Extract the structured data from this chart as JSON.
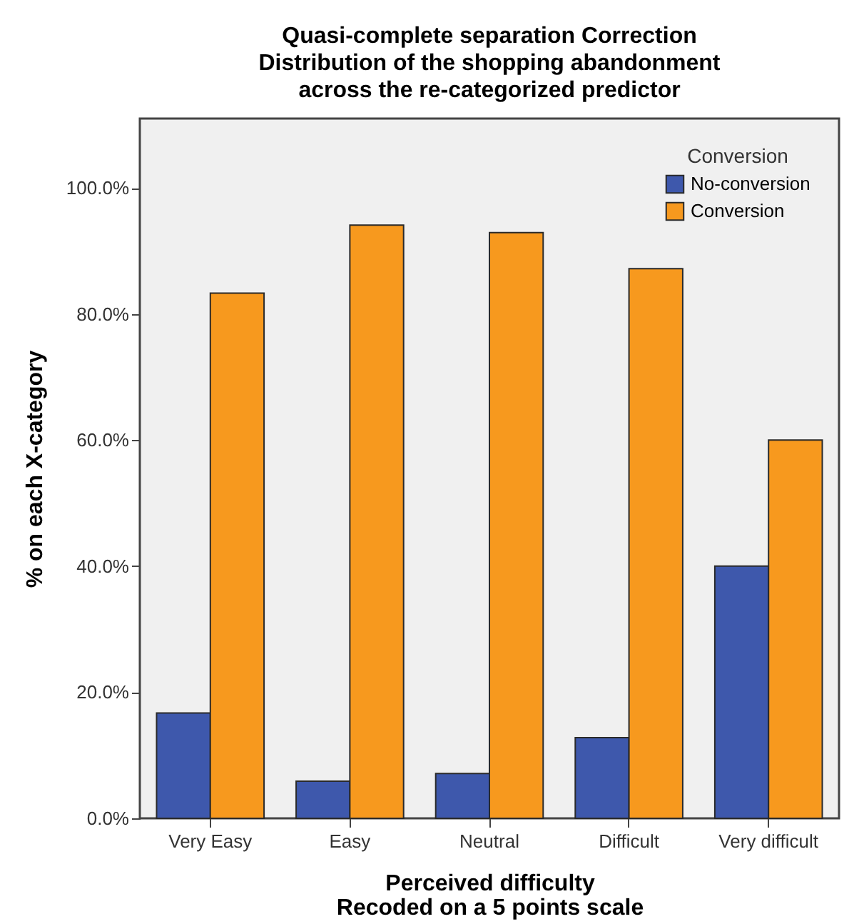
{
  "chart_data": {
    "type": "bar",
    "title": [
      "Quasi-complete separation Correction",
      "Distribution of the shopping abandonment",
      "across the re-categorized predictor"
    ],
    "xlabel": [
      "Perceived difficulty",
      "Recoded on a 5 points scale"
    ],
    "ylabel": "% on each X-category",
    "legend_title": "Conversion",
    "legend": "top right",
    "grid": false,
    "categories": [
      "Very Easy",
      "Easy",
      "Neutral",
      "Difficult",
      "Very difficult"
    ],
    "series": [
      {
        "name": "No-conversion",
        "color": "#3e58ac",
        "values": [
          16.7,
          5.9,
          7.1,
          12.8,
          40.0
        ]
      },
      {
        "name": "Conversion",
        "color": "#f7991e",
        "values": [
          83.3,
          94.1,
          92.9,
          87.2,
          60.0
        ]
      }
    ],
    "ylim": [
      0,
      111
    ],
    "yticks": [
      {
        "value": 0,
        "label": "0.0%"
      },
      {
        "value": 20,
        "label": "20.0%"
      },
      {
        "value": 40,
        "label": "40.0%"
      },
      {
        "value": 60,
        "label": "60.0%"
      },
      {
        "value": 80,
        "label": "80.0%"
      },
      {
        "value": 100,
        "label": "100.0%"
      }
    ]
  }
}
